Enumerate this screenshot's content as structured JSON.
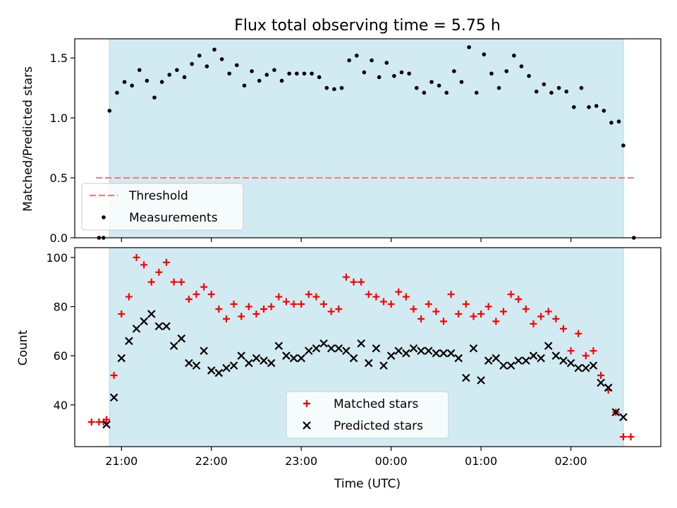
{
  "figure": {
    "title": "Flux total observing time = 5.75 h",
    "xlabel": "Time (UTC)"
  },
  "colors": {
    "shade": "#add8e6",
    "threshold": "#f08080",
    "measurements": "#000000",
    "matched": "#ff0000",
    "predicted": "#000000"
  },
  "chart_data": [
    {
      "type": "scatter",
      "panel": "top",
      "ylabel": "Matched/Predicted stars",
      "xlim": [
        20.48,
        3.0
      ],
      "ylim": [
        0,
        1.66
      ],
      "yticks": [
        0.0,
        0.5,
        1.0,
        1.5
      ],
      "ytick_labels": [
        "0.0",
        "0.5",
        "1.0",
        "1.5"
      ],
      "xticks": [
        "21:00",
        "22:00",
        "23:00",
        "00:00",
        "01:00",
        "02:00"
      ],
      "shaded_interval": [
        "20:52",
        "02:35"
      ],
      "threshold": {
        "label": "Threshold",
        "value": 0.5,
        "x_start": "20:43",
        "x_end": "02:42",
        "style": "dashed"
      },
      "legend": {
        "position": "lower-left",
        "entries": [
          "Threshold",
          "Measurements"
        ]
      },
      "series": [
        {
          "name": "Measurements",
          "marker": "dot",
          "x": [
            "20:45",
            "20:48",
            "20:52",
            "20:57",
            "21:02",
            "21:07",
            "21:12",
            "21:17",
            "21:22",
            "21:27",
            "21:32",
            "21:37",
            "21:42",
            "21:47",
            "21:52",
            "21:57",
            "22:02",
            "22:07",
            "22:12",
            "22:17",
            "22:22",
            "22:27",
            "22:32",
            "22:37",
            "22:42",
            "22:47",
            "22:52",
            "22:57",
            "23:02",
            "23:07",
            "23:12",
            "23:17",
            "23:22",
            "23:27",
            "23:32",
            "23:37",
            "23:42",
            "23:47",
            "23:52",
            "23:57",
            "00:02",
            "00:07",
            "00:12",
            "00:17",
            "00:22",
            "00:27",
            "00:32",
            "00:37",
            "00:42",
            "00:47",
            "00:52",
            "00:57",
            "01:02",
            "01:07",
            "01:12",
            "01:17",
            "01:22",
            "01:27",
            "01:32",
            "01:37",
            "01:42",
            "01:47",
            "01:52",
            "01:57",
            "02:02",
            "02:07",
            "02:12",
            "02:17",
            "02:22",
            "02:27",
            "02:32",
            "02:35",
            "02:42"
          ],
          "y": [
            0.0,
            0.0,
            1.06,
            1.21,
            1.3,
            1.27,
            1.4,
            1.31,
            1.17,
            1.3,
            1.36,
            1.4,
            1.34,
            1.45,
            1.52,
            1.43,
            1.57,
            1.49,
            1.37,
            1.44,
            1.27,
            1.39,
            1.31,
            1.36,
            1.4,
            1.31,
            1.37,
            1.37,
            1.37,
            1.37,
            1.34,
            1.25,
            1.24,
            1.25,
            1.48,
            1.52,
            1.38,
            1.48,
            1.34,
            1.46,
            1.35,
            1.38,
            1.37,
            1.25,
            1.21,
            1.3,
            1.27,
            1.21,
            1.39,
            1.3,
            1.59,
            1.21,
            1.53,
            1.37,
            1.25,
            1.39,
            1.52,
            1.43,
            1.35,
            1.22,
            1.28,
            1.21,
            1.25,
            1.22,
            1.09,
            1.25,
            1.09,
            1.1,
            1.06,
            0.96,
            0.97,
            0.77,
            0.0
          ]
        }
      ]
    },
    {
      "type": "scatter",
      "panel": "bottom",
      "ylabel": "Count",
      "xlim": [
        20.48,
        3.0
      ],
      "ylim": [
        23,
        104
      ],
      "yticks": [
        40,
        60,
        80,
        100
      ],
      "ytick_labels": [
        "40",
        "60",
        "80",
        "100"
      ],
      "xticks": [
        "21:00",
        "22:00",
        "23:00",
        "00:00",
        "01:00",
        "02:00"
      ],
      "shaded_interval": [
        "20:52",
        "02:35"
      ],
      "legend": {
        "position": "lower-center",
        "entries": [
          "Matched stars",
          "Predicted stars"
        ]
      },
      "series": [
        {
          "name": "Matched stars",
          "marker": "plus",
          "x": [
            "20:40",
            "20:45",
            "20:48",
            "20:50",
            "20:55",
            "21:00",
            "21:05",
            "21:10",
            "21:15",
            "21:20",
            "21:25",
            "21:30",
            "21:35",
            "21:40",
            "21:45",
            "21:50",
            "21:55",
            "22:00",
            "22:05",
            "22:10",
            "22:15",
            "22:20",
            "22:25",
            "22:30",
            "22:35",
            "22:40",
            "22:45",
            "22:50",
            "22:55",
            "23:00",
            "23:05",
            "23:10",
            "23:15",
            "23:20",
            "23:25",
            "23:30",
            "23:35",
            "23:40",
            "23:45",
            "23:50",
            "23:55",
            "00:00",
            "00:05",
            "00:10",
            "00:15",
            "00:20",
            "00:25",
            "00:30",
            "00:35",
            "00:40",
            "00:45",
            "00:50",
            "00:55",
            "01:00",
            "01:05",
            "01:10",
            "01:15",
            "01:20",
            "01:25",
            "01:30",
            "01:35",
            "01:40",
            "01:45",
            "01:50",
            "01:55",
            "02:00",
            "02:05",
            "02:10",
            "02:15",
            "02:20",
            "02:25",
            "02:30",
            "02:35",
            "02:40"
          ],
          "y": [
            33,
            33,
            33,
            34,
            52,
            77,
            84,
            100,
            97,
            90,
            94,
            98,
            90,
            90,
            83,
            85,
            88,
            85,
            79,
            75,
            81,
            76,
            80,
            77,
            79,
            80,
            84,
            82,
            81,
            81,
            85,
            84,
            81,
            78,
            79,
            92,
            90,
            90,
            85,
            84,
            82,
            81,
            86,
            84,
            79,
            75,
            81,
            78,
            74,
            85,
            77,
            81,
            76,
            77,
            80,
            74,
            78,
            85,
            83,
            79,
            73,
            76,
            78,
            75,
            71,
            62,
            69,
            60,
            62,
            52,
            46,
            37,
            27,
            27
          ]
        },
        {
          "name": "Predicted stars",
          "marker": "x",
          "x": [
            "20:50",
            "20:55",
            "21:00",
            "21:05",
            "21:10",
            "21:15",
            "21:20",
            "21:25",
            "21:30",
            "21:35",
            "21:40",
            "21:45",
            "21:50",
            "21:55",
            "22:00",
            "22:05",
            "22:10",
            "22:15",
            "22:20",
            "22:25",
            "22:30",
            "22:35",
            "22:40",
            "22:45",
            "22:50",
            "22:55",
            "23:00",
            "23:05",
            "23:10",
            "23:15",
            "23:20",
            "23:25",
            "23:30",
            "23:35",
            "23:40",
            "23:45",
            "23:50",
            "23:55",
            "00:00",
            "00:05",
            "00:10",
            "00:15",
            "00:20",
            "00:25",
            "00:30",
            "00:35",
            "00:40",
            "00:45",
            "00:50",
            "00:55",
            "01:00",
            "01:05",
            "01:10",
            "01:15",
            "01:20",
            "01:25",
            "01:30",
            "01:35",
            "01:40",
            "01:45",
            "01:50",
            "01:55",
            "02:00",
            "02:05",
            "02:10",
            "02:15",
            "02:20",
            "02:25",
            "02:30",
            "02:35"
          ],
          "y": [
            32,
            43,
            59,
            66,
            71,
            74,
            77,
            72,
            72,
            64,
            67,
            57,
            56,
            62,
            54,
            53,
            55,
            56,
            60,
            57,
            59,
            58,
            57,
            64,
            60,
            59,
            59,
            62,
            63,
            65,
            63,
            63,
            62,
            59,
            65,
            57,
            63,
            56,
            60,
            62,
            61,
            63,
            62,
            62,
            61,
            61,
            61,
            59,
            51,
            63,
            50,
            58,
            59,
            56,
            56,
            58,
            58,
            60,
            59,
            64,
            60,
            58,
            57,
            55,
            55,
            56,
            49,
            47,
            37,
            35
          ]
        }
      ]
    }
  ]
}
